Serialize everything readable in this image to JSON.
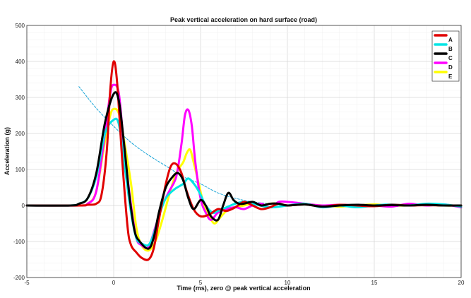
{
  "chart_data": {
    "type": "line",
    "title": "Peak vertical acceleration on hard surface (road)",
    "xlabel": "Time (ms), zero @ peak vertical acceleration",
    "ylabel": "Acceleration (g)",
    "xlim": [
      -5,
      20
    ],
    "ylim": [
      -200,
      500
    ],
    "xticks": [
      "-5",
      "0",
      "5",
      "10",
      "15",
      "20"
    ],
    "yticks": [
      "-200",
      "-100",
      "0",
      "100",
      "200",
      "300",
      "400",
      "500"
    ],
    "grid": true,
    "legend_position": "top-right",
    "series": [
      {
        "name": "A",
        "color": "#e00000",
        "x": [
          -5,
          -2,
          -1.5,
          -1,
          -0.7,
          -0.4,
          -0.2,
          0,
          0.2,
          0.5,
          0.8,
          1,
          1.3,
          1.6,
          2,
          2.3,
          2.6,
          3,
          3.3,
          3.6,
          3.9,
          4.2,
          4.6,
          5,
          5.5,
          6,
          6.5,
          7,
          7.5,
          8,
          8.5,
          9,
          9.5,
          10,
          11,
          12,
          13,
          14,
          15,
          16,
          17,
          18,
          19,
          20
        ],
        "y": [
          0,
          0,
          2,
          5,
          30,
          150,
          320,
          400,
          340,
          120,
          -60,
          -110,
          -130,
          -145,
          -150,
          -120,
          -40,
          60,
          110,
          115,
          90,
          40,
          -10,
          -30,
          -25,
          -10,
          -15,
          -5,
          10,
          0,
          -10,
          -5,
          5,
          0,
          3,
          -3,
          2,
          0,
          -2,
          2,
          0,
          1,
          0,
          0
        ]
      },
      {
        "name": "B",
        "color": "#00e5e5",
        "x": [
          -5,
          -2.5,
          -2,
          -1.5,
          -1,
          -0.5,
          0,
          0.3,
          0.6,
          1,
          1.3,
          1.6,
          2,
          2.3,
          2.6,
          3,
          3.5,
          4,
          4.3,
          4.7,
          5,
          5.3,
          5.7,
          6,
          6.5,
          7,
          7.5,
          8,
          9,
          10,
          11,
          12,
          13,
          14,
          15,
          16,
          17,
          18,
          19,
          20
        ],
        "y": [
          0,
          0,
          5,
          20,
          80,
          200,
          238,
          225,
          120,
          -20,
          -90,
          -105,
          -110,
          -80,
          -30,
          20,
          45,
          60,
          75,
          55,
          30,
          0,
          -20,
          -15,
          -5,
          5,
          10,
          5,
          -5,
          0,
          5,
          -5,
          0,
          -5,
          0,
          3,
          0,
          5,
          3,
          -3
        ]
      },
      {
        "name": "C",
        "color": "#000000",
        "x": [
          -5,
          -2.5,
          -2,
          -1.5,
          -1,
          -0.5,
          0,
          0.3,
          0.6,
          0.9,
          1.2,
          1.5,
          2,
          2.3,
          2.6,
          3,
          3.4,
          3.7,
          4,
          4.3,
          4.6,
          5,
          5.3,
          5.6,
          6,
          6.3,
          6.6,
          6.9,
          7.2,
          7.5,
          8,
          8.5,
          9,
          9.5,
          10,
          11,
          12,
          13,
          14,
          15,
          16,
          17,
          18,
          19,
          20
        ],
        "y": [
          0,
          0,
          5,
          20,
          90,
          230,
          310,
          290,
          170,
          30,
          -70,
          -100,
          -120,
          -90,
          -20,
          50,
          80,
          90,
          70,
          20,
          -10,
          15,
          0,
          -30,
          -40,
          0,
          35,
          15,
          5,
          5,
          10,
          0,
          5,
          5,
          0,
          3,
          -3,
          0,
          2,
          0,
          1,
          0,
          2,
          0,
          0
        ]
      },
      {
        "name": "D",
        "color": "#ff00ff",
        "x": [
          -5,
          -2,
          -1.5,
          -1,
          -0.5,
          -0.2,
          0,
          0.3,
          0.6,
          1,
          1.3,
          1.6,
          2,
          2.4,
          2.8,
          3.2,
          3.6,
          3.9,
          4.1,
          4.3,
          4.5,
          4.7,
          5,
          5.3,
          5.6,
          6,
          6.5,
          7,
          7.5,
          8,
          8.5,
          9,
          9.5,
          10,
          11,
          12,
          13,
          14,
          15,
          16,
          17,
          18,
          19,
          20
        ],
        "y": [
          0,
          0,
          5,
          40,
          200,
          310,
          335,
          310,
          160,
          0,
          -90,
          -110,
          -115,
          -60,
          0,
          40,
          80,
          170,
          250,
          265,
          220,
          120,
          20,
          -20,
          -40,
          -20,
          -10,
          -5,
          -10,
          0,
          5,
          -5,
          10,
          10,
          5,
          0,
          2,
          0,
          0,
          -3,
          5,
          0,
          3,
          -5
        ]
      },
      {
        "name": "E",
        "color": "#ffff00",
        "x": [
          -5,
          -2,
          -1.5,
          -1,
          -0.5,
          -0.2,
          0,
          0.3,
          0.6,
          1,
          1.3,
          1.6,
          2,
          2.4,
          2.8,
          3.2,
          3.6,
          4,
          4.2,
          4.4,
          4.6,
          4.9,
          5.2,
          5.5,
          5.8,
          6.1,
          6.5,
          7,
          7.5,
          8,
          8.5,
          9,
          9.5,
          10,
          11,
          12,
          13,
          14,
          15,
          16,
          17,
          18,
          19,
          20
        ],
        "y": [
          0,
          0,
          5,
          40,
          180,
          250,
          268,
          255,
          180,
          60,
          -60,
          -110,
          -125,
          -100,
          -40,
          30,
          90,
          120,
          145,
          155,
          120,
          60,
          0,
          -30,
          -50,
          -35,
          -15,
          -5,
          0,
          5,
          0,
          5,
          5,
          0,
          3,
          0,
          -3,
          0,
          3,
          0,
          0,
          2,
          0,
          0
        ]
      },
      {
        "name": "",
        "color": "#1aa5d8",
        "dashed": true,
        "x": [
          -2,
          -1,
          0,
          1,
          2,
          3,
          4,
          5,
          6,
          7,
          8,
          9,
          10
        ],
        "y": [
          330,
          270,
          220,
          175,
          140,
          110,
          80,
          60,
          35,
          20,
          10,
          5,
          0
        ]
      }
    ]
  }
}
